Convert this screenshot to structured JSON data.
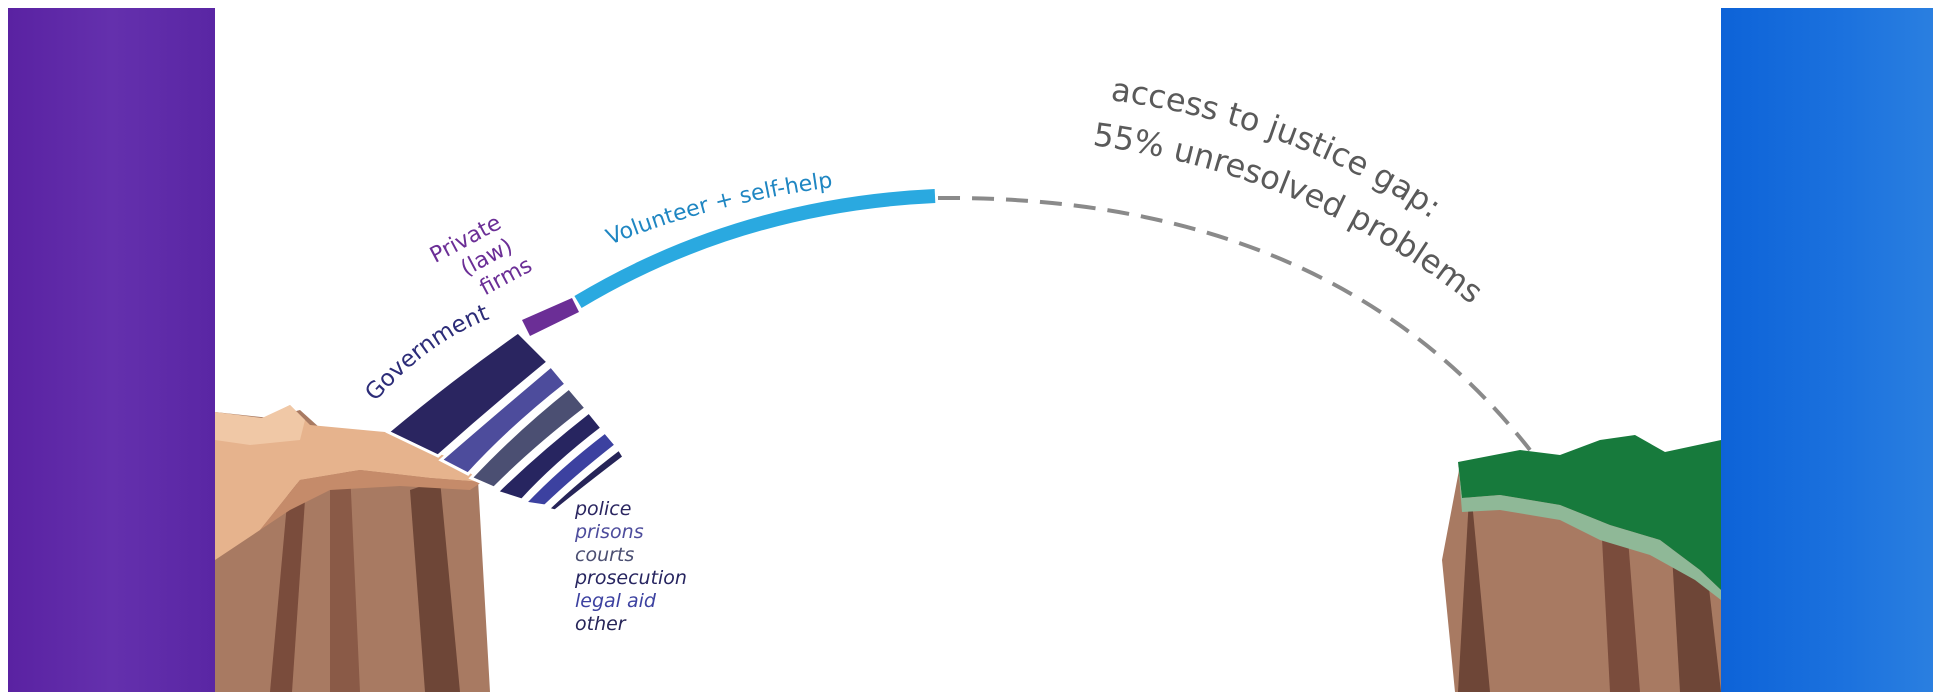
{
  "colors": {
    "left_panel": "#5c25a6",
    "right_panel": "#1d6fdc",
    "volunteer": "#2aa9e0",
    "private": "#6b2e96",
    "government": "#2c2763",
    "gap_line": "#8a8a8a",
    "gap_text": "#5a5a5a",
    "rock": "#a87a62",
    "rock_dark": "#6e4637",
    "sand": "#e6b38d",
    "grass": "#177a3c"
  },
  "labels": {
    "volunteer": "Volunteer + self-help",
    "private": [
      "Private",
      "(law)",
      "firms"
    ],
    "government": "Government",
    "gap_line1": "access to justice gap:",
    "gap_line2": "55% unresolved problems"
  },
  "government_breakdown": [
    {
      "label": "police",
      "color": "#2a2560"
    },
    {
      "label": "prisons",
      "color": "#4d4c9c"
    },
    {
      "label": "courts",
      "color": "#4b4f72"
    },
    {
      "label": "prosecution",
      "color": "#272560"
    },
    {
      "label": "legal aid",
      "color": "#3c41a0"
    },
    {
      "label": "other",
      "color": "#262458"
    }
  ],
  "icons": {
    "left_cliff": "cliff-sand-icon",
    "right_cliff": "cliff-grass-icon"
  }
}
